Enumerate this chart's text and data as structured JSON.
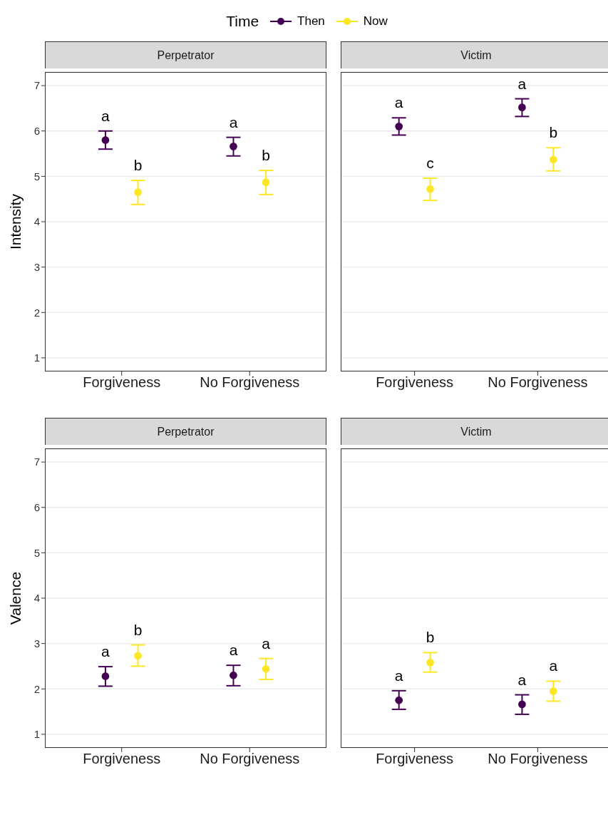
{
  "chart_data": [
    {
      "type": "scatter",
      "title": "Perpetrator",
      "ylabel": "Intensity",
      "categories": [
        "Forgiveness",
        "No Forgiveness"
      ],
      "legend_title": "Time",
      "legend": "top",
      "marker": "circle",
      "grid": "y",
      "ylim": [
        0.7,
        7.3
      ],
      "yticks": [
        1,
        2,
        3,
        4,
        5,
        6,
        7
      ],
      "series": [
        {
          "name": "Then",
          "color": "#440154",
          "values": [
            5.8,
            5.66
          ],
          "errors": [
            [
              5.6,
              6.0
            ],
            [
              5.45,
              5.86
            ]
          ]
        },
        {
          "name": "Now",
          "color": "#fde725",
          "values": [
            4.65,
            4.87
          ],
          "errors": [
            [
              4.38,
              4.91
            ],
            [
              4.6,
              5.13
            ]
          ]
        }
      ],
      "annotations": [
        "a",
        "b",
        "a",
        "b"
      ]
    },
    {
      "type": "scatter",
      "title": "Victim",
      "categories": [
        "Forgiveness",
        "No Forgiveness"
      ],
      "marker": "circle",
      "grid": "y",
      "ylim": [
        0.7,
        7.3
      ],
      "yticks": [
        1,
        2,
        3,
        4,
        5,
        6,
        7
      ],
      "tick_labels": "x",
      "series": [
        {
          "color": "#440154",
          "values": [
            6.1,
            6.52
          ],
          "errors": [
            [
              5.91,
              6.29
            ],
            [
              6.32,
              6.71
            ]
          ]
        },
        {
          "color": "#fde725",
          "values": [
            4.72,
            5.37
          ],
          "errors": [
            [
              4.47,
              4.96
            ],
            [
              5.12,
              5.63
            ]
          ]
        }
      ],
      "annotations": [
        "a",
        "c",
        "a",
        "b"
      ]
    },
    {
      "type": "scatter",
      "title": "Perpetrator",
      "ylabel": "Valence",
      "categories": [
        "Forgiveness",
        "No Forgiveness"
      ],
      "marker": "circle",
      "grid": "y",
      "ylim": [
        0.7,
        7.3
      ],
      "yticks": [
        1,
        2,
        3,
        4,
        5,
        6,
        7
      ],
      "series": [
        {
          "color": "#440154",
          "values": [
            2.28,
            2.3
          ],
          "errors": [
            [
              2.06,
              2.49
            ],
            [
              2.07,
              2.52
            ]
          ]
        },
        {
          "color": "#fde725",
          "values": [
            2.73,
            2.44
          ],
          "errors": [
            [
              2.5,
              2.97
            ],
            [
              2.21,
              2.67
            ]
          ]
        }
      ],
      "annotations": [
        "a",
        "b",
        "a",
        "a"
      ]
    },
    {
      "type": "scatter",
      "title": "Victim",
      "categories": [
        "Forgiveness",
        "No Forgiveness"
      ],
      "marker": "circle",
      "grid": "y",
      "ylim": [
        0.7,
        7.3
      ],
      "yticks": [
        1,
        2,
        3,
        4,
        5,
        6,
        7
      ],
      "tick_labels": "x",
      "series": [
        {
          "color": "#440154",
          "values": [
            1.75,
            1.66
          ],
          "errors": [
            [
              1.55,
              1.96
            ],
            [
              1.44,
              1.87
            ]
          ]
        },
        {
          "color": "#fde725",
          "values": [
            2.58,
            1.95
          ],
          "errors": [
            [
              2.37,
              2.8
            ],
            [
              1.73,
              2.17
            ]
          ]
        }
      ],
      "annotations": [
        "a",
        "b",
        "a",
        "a"
      ]
    }
  ]
}
